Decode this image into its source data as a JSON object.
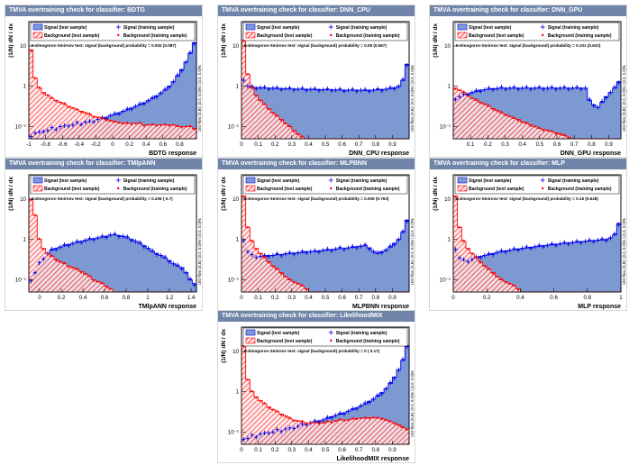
{
  "colors": {
    "titlebar": "#6f84a8",
    "signal_fill": "#7d99d1",
    "signal_line": "#0000ee",
    "background_fill": "#ff0000",
    "background_line": "#ff0000",
    "points_signal": "#0000ee",
    "points_background": "#ff0000"
  },
  "legend": {
    "signal_test": "Signal (test sample)",
    "signal_train": "Signal (training sample)",
    "background_test": "Background (test sample)",
    "background_train": "Background (training sample)"
  },
  "ylabel": "(1/N) dN / dx",
  "chart_data": [
    {
      "type": "histogram",
      "title": "TMVA overtraining check for classifier: BDTG",
      "xlabel": "BDTG response",
      "ks_text": "Kolmogorov-Smirnov test: signal (background) probability = 0.002 (0.087)",
      "overflow_text": "U/O-flow (S,B): (0.0, 0.0)% / (0.0, 0.0)%",
      "xlim": [
        -1,
        1
      ],
      "ylim": [
        0.05,
        40
      ],
      "log_y": true,
      "xticks": [
        "-1",
        "-0.8",
        "-0.6",
        "-0.4",
        "-0.2",
        "0",
        "0.2",
        "0.4",
        "0.6",
        "0.8"
      ],
      "xtick_values": [
        -1,
        -0.8,
        -0.6,
        -0.4,
        -0.2,
        0,
        0.2,
        0.4,
        0.6,
        0.8
      ],
      "yticks": [
        "10",
        "1",
        "10⁻¹"
      ],
      "ytick_values": [
        10,
        1,
        0.1
      ],
      "signal": [
        0.06,
        0.07,
        0.07,
        0.08,
        0.08,
        0.09,
        0.09,
        0.1,
        0.1,
        0.11,
        0.11,
        0.12,
        0.12,
        0.13,
        0.13,
        0.14,
        0.15,
        0.16,
        0.17,
        0.19,
        0.2,
        0.22,
        0.24,
        0.26,
        0.29,
        0.32,
        0.35,
        0.39,
        0.44,
        0.5,
        0.58,
        0.68,
        0.8,
        1.0,
        1.3,
        1.8,
        2.6,
        4.0,
        6.5,
        12.0
      ],
      "background": [
        8.0,
        1.6,
        0.9,
        0.7,
        0.6,
        0.5,
        0.45,
        0.4,
        0.36,
        0.32,
        0.29,
        0.26,
        0.24,
        0.22,
        0.2,
        0.18,
        0.17,
        0.16,
        0.15,
        0.14,
        0.13,
        0.13,
        0.12,
        0.12,
        0.12,
        0.12,
        0.12,
        0.11,
        0.11,
        0.11,
        0.11,
        0.11,
        0.11,
        0.11,
        0.11,
        0.1,
        0.1,
        0.1,
        0.1,
        0.09
      ]
    },
    {
      "type": "histogram",
      "title": "TMVA overtraining check for classifier: DNN_CPU",
      "xlabel": "DNN_CPU response",
      "ks_text": "Kolmogorov-Smirnov test: signal (background) probability = 0.08 (0.567)",
      "overflow_text": "U/O-flow (S,B): (0.0, 0.0)% / (0.0, 0.0)%",
      "xlim": [
        0,
        1
      ],
      "ylim": [
        0.05,
        40
      ],
      "log_y": true,
      "xticks": [
        "0",
        "0.1",
        "0.2",
        "0.3",
        "0.4",
        "0.5",
        "0.6",
        "0.7",
        "0.8",
        "0.9"
      ],
      "xtick_values": [
        0,
        0.1,
        0.2,
        0.3,
        0.4,
        0.5,
        0.6,
        0.7,
        0.8,
        0.9
      ],
      "yticks": [
        "10",
        "1",
        "10⁻¹"
      ],
      "ytick_values": [
        10,
        1,
        0.1
      ],
      "signal": [
        1.5,
        1.0,
        0.95,
        0.93,
        0.92,
        0.9,
        0.9,
        0.9,
        0.88,
        0.88,
        0.87,
        0.86,
        0.86,
        0.85,
        0.85,
        0.84,
        0.84,
        0.83,
        0.83,
        0.82,
        0.82,
        0.82,
        0.81,
        0.81,
        0.8,
        0.8,
        0.8,
        0.8,
        0.8,
        0.79,
        0.8,
        0.8,
        0.82,
        0.83,
        0.85,
        0.88,
        0.92,
        1.0,
        1.4,
        3.5
      ],
      "background": [
        14.0,
        2.0,
        0.9,
        0.6,
        0.45,
        0.35,
        0.28,
        0.22,
        0.18,
        0.15,
        0.12,
        0.1,
        0.08,
        0.065,
        0.055,
        0.045,
        0.04,
        0.035,
        0.03,
        0.025,
        0.02,
        0.02,
        0.02,
        0.02,
        0.02,
        0.02,
        0.02,
        0.02,
        0.02,
        0.02,
        0.02,
        0.02,
        0.02,
        0.02,
        0.02,
        0.02,
        0.02,
        0.02,
        0.02,
        0.02
      ]
    },
    {
      "type": "histogram",
      "title": "TMVA overtraining check for classifier: DNN_GPU",
      "xlabel": "DNN_GPU response",
      "ks_text": "Kolmogorov-Smirnov test: signal (background) probability = 0.101 (0.632)",
      "overflow_text": "U/O-flow (S,B): (0.0, 0.0)% / (0.0, 0.0)%",
      "xlim": [
        0,
        0.97
      ],
      "ylim": [
        0.05,
        40
      ],
      "log_y": true,
      "xticks": [
        "0.1",
        "0.2",
        "0.3",
        "0.4",
        "0.5",
        "0.6",
        "0.7",
        "0.8",
        "0.9"
      ],
      "xtick_values": [
        0.1,
        0.2,
        0.3,
        0.4,
        0.5,
        0.6,
        0.7,
        0.8,
        0.9
      ],
      "yticks": [
        "10",
        "1",
        "10⁻¹"
      ],
      "ytick_values": [
        10,
        1,
        0.1
      ],
      "signal": [
        0.5,
        0.55,
        0.6,
        0.65,
        0.7,
        0.75,
        0.8,
        0.82,
        0.85,
        0.87,
        0.88,
        0.9,
        0.9,
        0.9,
        0.9,
        0.9,
        0.9,
        0.9,
        0.9,
        0.9,
        0.9,
        0.9,
        0.9,
        0.9,
        0.9,
        0.9,
        0.9,
        0.9,
        0.9,
        0.9,
        0.9,
        0.9,
        0.45,
        0.35,
        0.3,
        0.4,
        0.55,
        0.7,
        0.9,
        1.3
      ],
      "background": [
        0.9,
        0.8,
        0.7,
        0.6,
        0.5,
        0.45,
        0.4,
        0.36,
        0.32,
        0.28,
        0.25,
        0.22,
        0.2,
        0.18,
        0.16,
        0.15,
        0.13,
        0.12,
        0.11,
        0.1,
        0.09,
        0.085,
        0.08,
        0.075,
        0.07,
        0.065,
        0.06,
        0.055,
        0.05,
        0.05,
        0.05,
        0.05,
        0.05,
        0.05,
        0.05,
        0.05,
        0.05,
        0.05,
        0.05,
        0.05
      ]
    },
    {
      "type": "histogram",
      "title": "TMVA overtraining check for classifier: TMlpANN",
      "xlabel": "TMlpANN response",
      "ks_text": "Kolmogorov-Smirnov test: signal (background) probability = 0.206 (  0.7)",
      "overflow_text": "U/O-flow (S,B): (0.0, 0.0)% / (0.0, 0.0)%",
      "xlim": [
        -0.1,
        1.45
      ],
      "ylim": [
        0.05,
        40
      ],
      "log_y": true,
      "xticks": [
        "0",
        "0.2",
        "0.4",
        "0.6",
        "0.8",
        "1",
        "1.2",
        "1.4"
      ],
      "xtick_values": [
        0,
        0.2,
        0.4,
        0.6,
        0.8,
        1,
        1.2,
        1.4
      ],
      "yticks": [
        "10",
        "1",
        "10⁻¹"
      ],
      "ytick_values": [
        10,
        1,
        0.1
      ],
      "signal": [
        0.1,
        0.15,
        0.25,
        0.35,
        0.45,
        0.55,
        0.6,
        0.65,
        0.7,
        0.75,
        0.8,
        0.85,
        0.9,
        0.95,
        1.0,
        1.05,
        1.1,
        1.15,
        1.2,
        1.3,
        1.3,
        1.25,
        1.2,
        1.1,
        1.0,
        0.9,
        0.8,
        0.7,
        0.6,
        0.5,
        0.45,
        0.4,
        0.35,
        0.3,
        0.25,
        0.22,
        0.2,
        0.15,
        0.1,
        0.08
      ],
      "background": [
        10.0,
        4.0,
        1.0,
        0.6,
        0.45,
        0.38,
        0.32,
        0.28,
        0.25,
        0.22,
        0.2,
        0.18,
        0.16,
        0.14,
        0.12,
        0.1,
        0.09,
        0.08,
        0.07,
        0.06,
        0.05,
        0.045,
        0.04,
        0.035,
        0.03,
        0.03,
        0.03,
        0.03,
        0.03,
        0.03,
        0.03,
        0.03,
        0.03,
        0.03,
        0.03,
        0.03,
        0.03,
        0.03,
        0.03,
        0.03
      ]
    },
    {
      "type": "histogram",
      "title": "TMVA overtraining check for classifier: MLPBNN",
      "xlabel": "MLPBNN response",
      "ks_text": "Kolmogorov-Smirnov test: signal (background) probability = 0.005 (0.763)",
      "overflow_text": "U/O-flow (S,B): (0.0, 0.0)% / (0.0, 0.0)%",
      "xlim": [
        0,
        1
      ],
      "ylim": [
        0.05,
        40
      ],
      "log_y": true,
      "xticks": [
        "0",
        "0.1",
        "0.2",
        "0.3",
        "0.4",
        "0.5",
        "0.6",
        "0.7",
        "0.8",
        "0.9"
      ],
      "xtick_values": [
        0,
        0.1,
        0.2,
        0.3,
        0.4,
        0.5,
        0.6,
        0.7,
        0.8,
        0.9
      ],
      "yticks": [
        "10",
        "1",
        "10⁻¹"
      ],
      "ytick_values": [
        10,
        1,
        0.1
      ],
      "signal": [
        1.0,
        0.5,
        0.4,
        0.38,
        0.38,
        0.38,
        0.4,
        0.4,
        0.42,
        0.42,
        0.44,
        0.45,
        0.46,
        0.47,
        0.48,
        0.5,
        0.5,
        0.5,
        0.52,
        0.54,
        0.55,
        0.56,
        0.58,
        0.6,
        0.6,
        0.62,
        0.64,
        0.66,
        0.68,
        0.7,
        0.62,
        0.5,
        0.45,
        0.5,
        0.55,
        0.65,
        0.8,
        1.0,
        1.5,
        3.0
      ],
      "background": [
        12.0,
        2.0,
        0.9,
        0.6,
        0.45,
        0.35,
        0.28,
        0.22,
        0.18,
        0.15,
        0.12,
        0.1,
        0.09,
        0.08,
        0.07,
        0.06,
        0.05,
        0.045,
        0.04,
        0.035,
        0.03,
        0.03,
        0.03,
        0.03,
        0.03,
        0.03,
        0.03,
        0.03,
        0.03,
        0.03,
        0.03,
        0.03,
        0.03,
        0.03,
        0.03,
        0.03,
        0.03,
        0.03,
        0.03,
        0.03
      ]
    },
    {
      "type": "histogram",
      "title": "TMVA overtraining check for classifier: MLP",
      "xlabel": "MLP response",
      "ks_text": "Kolmogorov-Smirnov test: signal (background) probability =  0.15 (0.628)",
      "overflow_text": "U/O-flow (S,B): (0.0, 0.0)% / (0.0, 0.0)%",
      "xlim": [
        0,
        1
      ],
      "ylim": [
        0.05,
        40
      ],
      "log_y": true,
      "xticks": [
        "0",
        "0.2",
        "0.4",
        "0.6",
        "0.8",
        "1"
      ],
      "xtick_values": [
        0,
        0.2,
        0.4,
        0.6,
        0.8,
        1
      ],
      "yticks": [
        "10",
        "1",
        "10⁻¹"
      ],
      "ytick_values": [
        10,
        1,
        0.1
      ],
      "signal": [
        0.6,
        0.35,
        0.3,
        0.3,
        0.32,
        0.35,
        0.38,
        0.4,
        0.42,
        0.45,
        0.48,
        0.5,
        0.52,
        0.54,
        0.56,
        0.58,
        0.6,
        0.62,
        0.64,
        0.66,
        0.68,
        0.7,
        0.72,
        0.74,
        0.76,
        0.78,
        0.8,
        0.82,
        0.84,
        0.86,
        0.88,
        0.9,
        0.92,
        0.94,
        0.96,
        0.98,
        1.0,
        1.1,
        1.3,
        2.5
      ],
      "background": [
        12.0,
        2.0,
        0.9,
        0.6,
        0.45,
        0.35,
        0.28,
        0.22,
        0.18,
        0.15,
        0.12,
        0.1,
        0.09,
        0.08,
        0.07,
        0.06,
        0.05,
        0.045,
        0.04,
        0.035,
        0.03,
        0.03,
        0.03,
        0.03,
        0.03,
        0.03,
        0.03,
        0.03,
        0.03,
        0.03,
        0.03,
        0.03,
        0.03,
        0.03,
        0.03,
        0.03,
        0.03,
        0.03,
        0.03,
        0.03
      ]
    },
    {
      "type": "histogram",
      "title": "TMVA overtraining check for classifier: LikelihoodMIX",
      "xlabel": "LikelihoodMIX response",
      "ks_text": "Kolmogorov-Smirnov test: signal (background) probability =     0 ( 0.17)",
      "overflow_text": "U/O-flow (S,B): (0.0, 0.0)% / (0.0, 0.0)%",
      "xlim": [
        0,
        1
      ],
      "ylim": [
        0.05,
        40
      ],
      "log_y": true,
      "xticks": [
        "0",
        "0.1",
        "0.2",
        "0.3",
        "0.4",
        "0.5",
        "0.6",
        "0.7",
        "0.8",
        "0.9"
      ],
      "xtick_values": [
        0,
        0.1,
        0.2,
        0.3,
        0.4,
        0.5,
        0.6,
        0.7,
        0.8,
        0.9
      ],
      "yticks": [
        "10",
        "1",
        "10⁻¹"
      ],
      "ytick_values": [
        10,
        1,
        0.1
      ],
      "signal": [
        0.07,
        0.07,
        0.08,
        0.08,
        0.09,
        0.09,
        0.1,
        0.1,
        0.11,
        0.11,
        0.12,
        0.12,
        0.13,
        0.14,
        0.15,
        0.16,
        0.17,
        0.18,
        0.19,
        0.2,
        0.22,
        0.24,
        0.26,
        0.28,
        0.3,
        0.33,
        0.36,
        0.4,
        0.45,
        0.5,
        0.58,
        0.66,
        0.78,
        0.95,
        1.2,
        1.6,
        2.3,
        3.5,
        6.0,
        14.0
      ],
      "background": [
        14.0,
        2.0,
        1.0,
        0.75,
        0.6,
        0.5,
        0.42,
        0.36,
        0.32,
        0.28,
        0.25,
        0.22,
        0.2,
        0.19,
        0.18,
        0.17,
        0.17,
        0.17,
        0.17,
        0.17,
        0.18,
        0.18,
        0.19,
        0.2,
        0.2,
        0.2,
        0.21,
        0.22,
        0.22,
        0.22,
        0.23,
        0.23,
        0.22,
        0.22,
        0.2,
        0.18,
        0.17,
        0.15,
        0.13,
        0.12
      ]
    }
  ]
}
